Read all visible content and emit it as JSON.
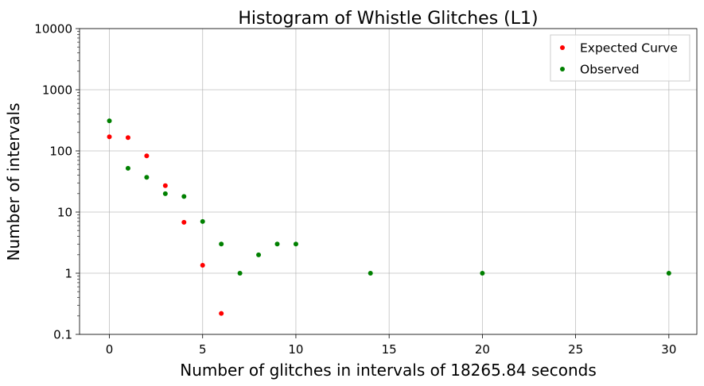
{
  "chart_data": {
    "type": "scatter",
    "title": "Histogram of Whistle Glitches (L1)",
    "xlabel": "Number of glitches in intervals of 18265.84 seconds",
    "ylabel": "Number of intervals",
    "xlim": [
      -1.6,
      31.5
    ],
    "ylim": [
      0.1,
      10000
    ],
    "yscale": "log",
    "grid": true,
    "legend_position": "top-right",
    "x_ticks": [
      "0",
      "5",
      "10",
      "15",
      "20",
      "25",
      "30"
    ],
    "y_ticks": [
      "0.1",
      "1",
      "10",
      "100",
      "1000",
      "10000"
    ],
    "series": [
      {
        "name": "Expected Curve",
        "color": "#ff0000",
        "points": [
          {
            "x": 0,
            "y": 170
          },
          {
            "x": 1,
            "y": 165
          },
          {
            "x": 2,
            "y": 83
          },
          {
            "x": 3,
            "y": 27
          },
          {
            "x": 4,
            "y": 6.8
          },
          {
            "x": 5,
            "y": 1.35
          },
          {
            "x": 6,
            "y": 0.22
          }
        ]
      },
      {
        "name": "Observed",
        "color": "#008000",
        "points": [
          {
            "x": 0,
            "y": 310
          },
          {
            "x": 1,
            "y": 52
          },
          {
            "x": 2,
            "y": 37
          },
          {
            "x": 3,
            "y": 20
          },
          {
            "x": 4,
            "y": 18
          },
          {
            "x": 5,
            "y": 7
          },
          {
            "x": 6,
            "y": 3
          },
          {
            "x": 7,
            "y": 1
          },
          {
            "x": 8,
            "y": 2
          },
          {
            "x": 9,
            "y": 3
          },
          {
            "x": 10,
            "y": 3
          },
          {
            "x": 14,
            "y": 1
          },
          {
            "x": 20,
            "y": 1
          },
          {
            "x": 30,
            "y": 1
          }
        ]
      }
    ]
  }
}
